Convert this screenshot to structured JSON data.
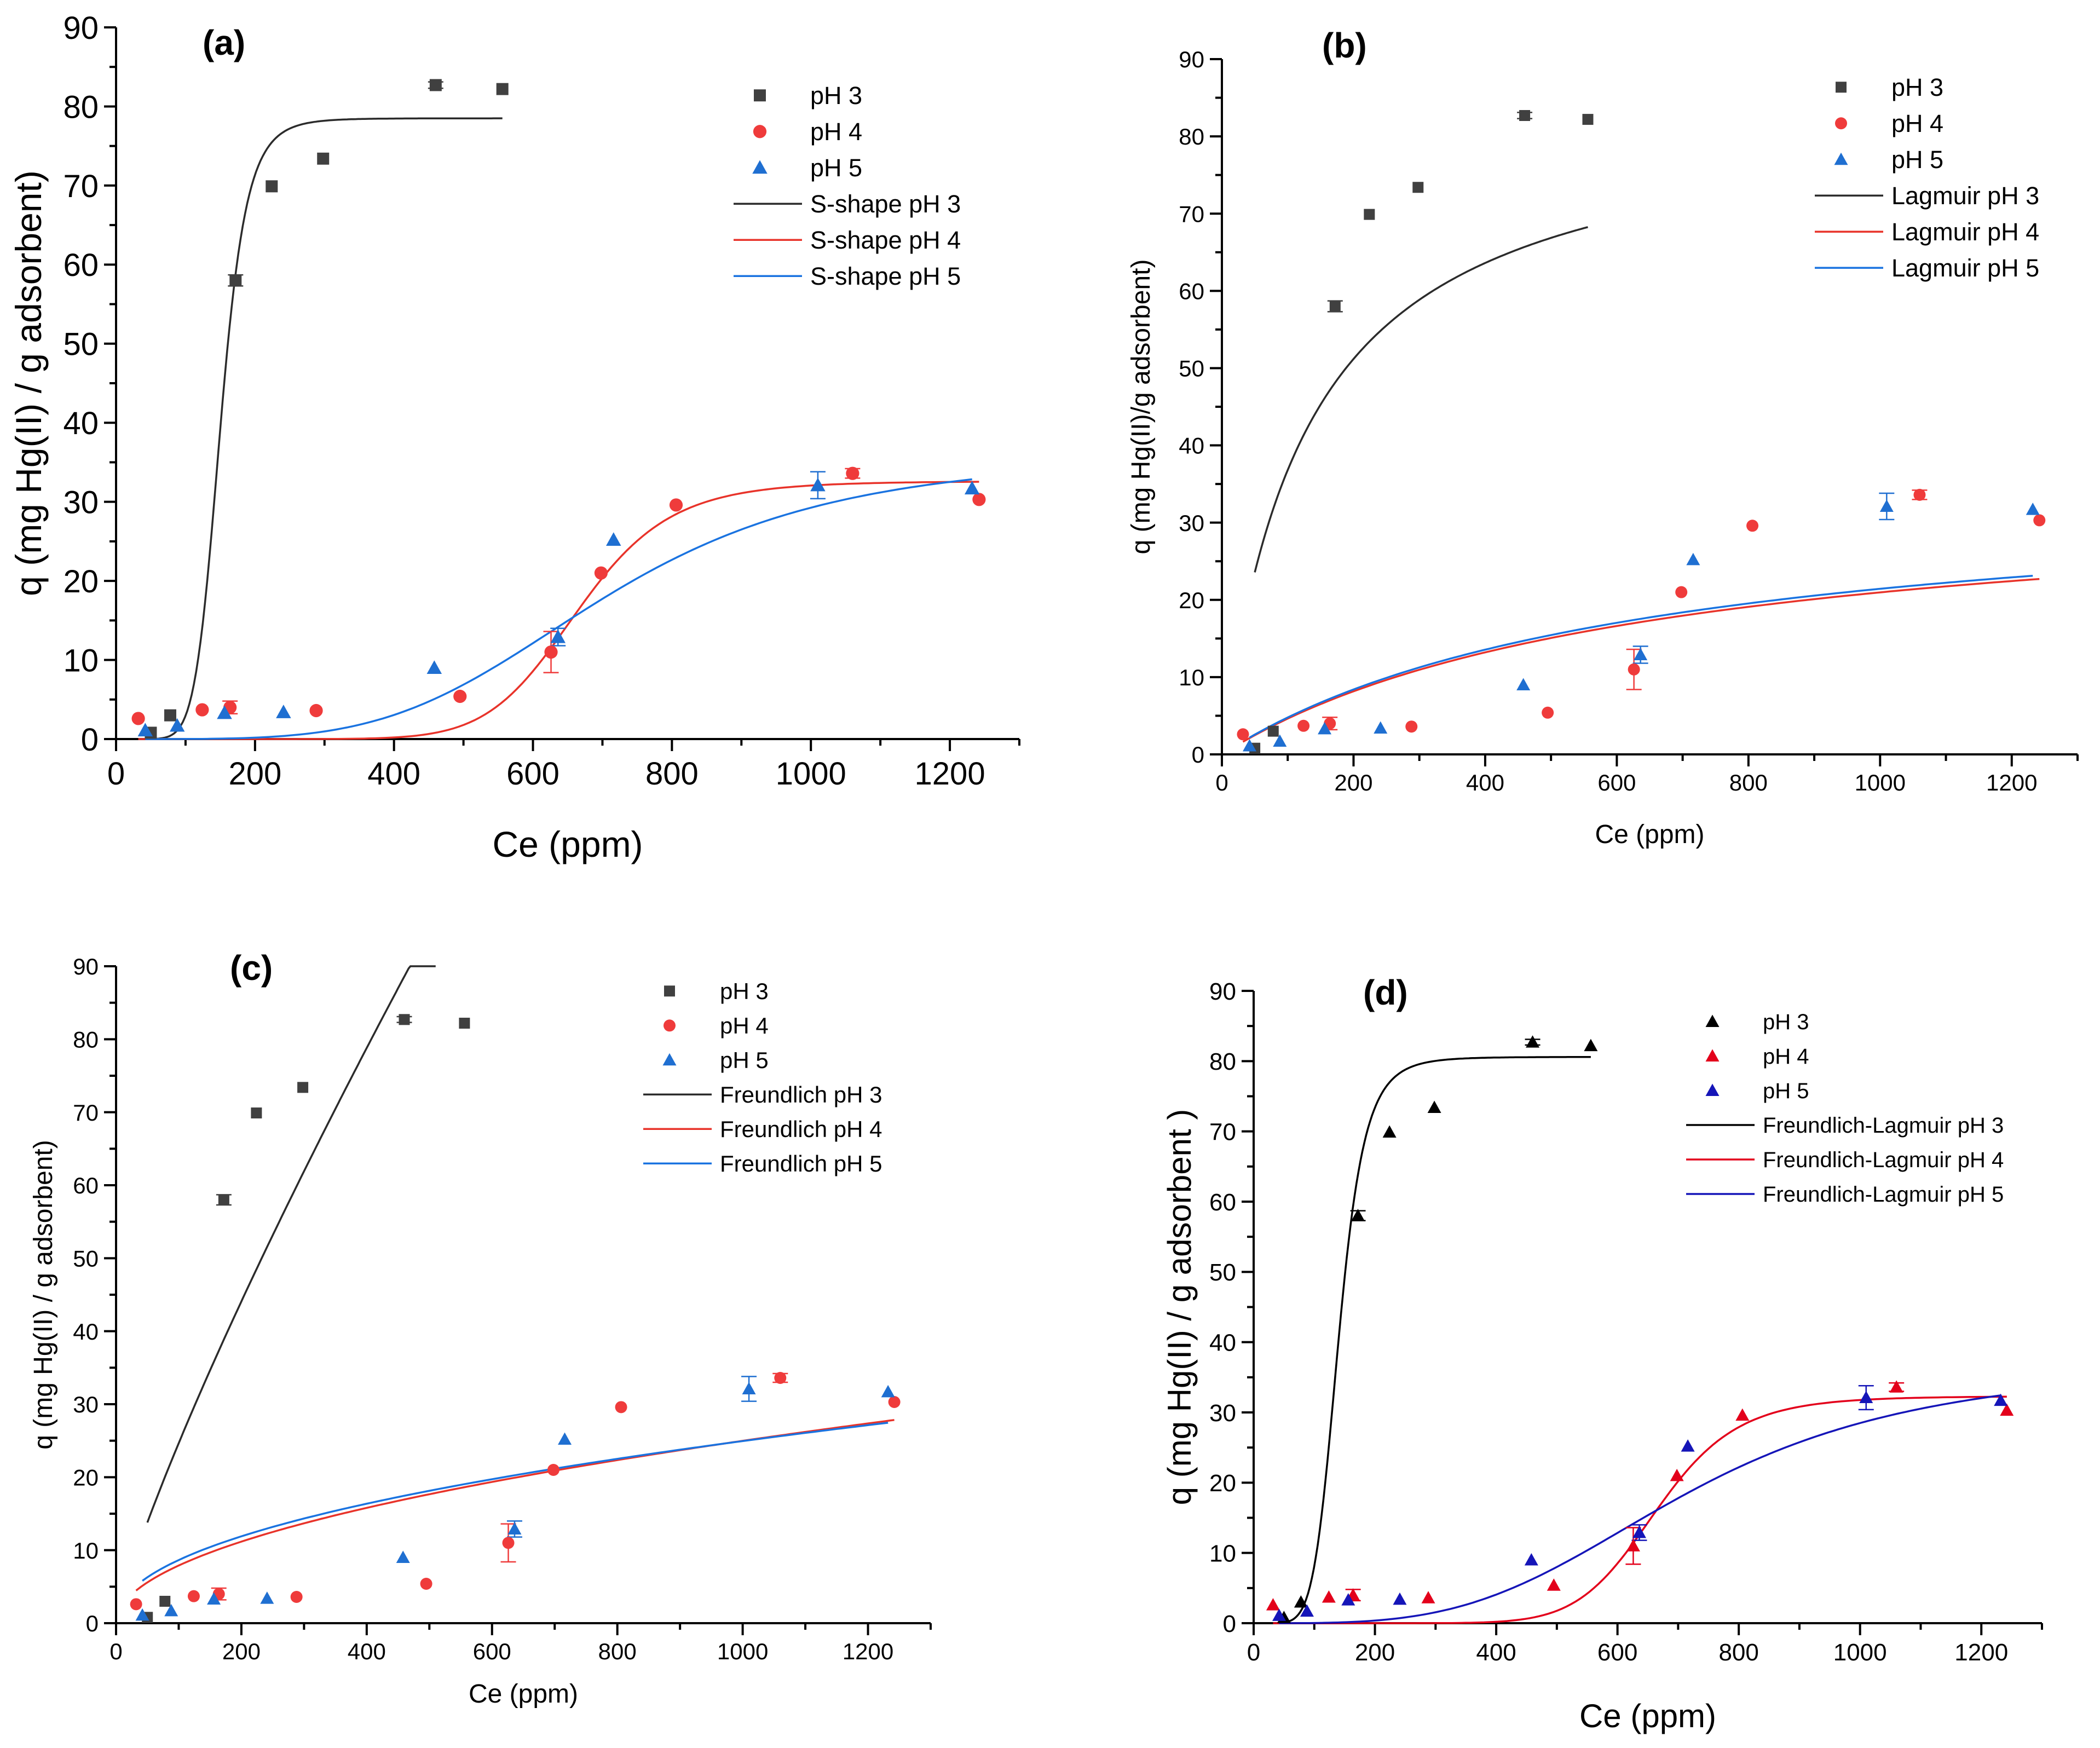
{
  "chart_data": [
    {
      "type": "scatter",
      "panel_label": "(a)",
      "xlabel": "Ce (ppm)",
      "ylabel": "q (mg Hg(II) / g adsorbent)",
      "xlim": [
        0,
        1300
      ],
      "ylim": [
        0,
        90
      ],
      "xticks": [
        "0",
        "200",
        "400",
        "600",
        "800",
        "1000",
        "1200"
      ],
      "yticks": [
        "0",
        "10",
        "20",
        "30",
        "40",
        "50",
        "60",
        "70",
        "80",
        "90"
      ],
      "marker_style": "mixed",
      "legend_position": "top-right",
      "legend": [
        "pH 3",
        "pH 4",
        "pH 5",
        "S-shape pH 3",
        "S-shape pH 4",
        "S-shape pH 5"
      ],
      "scatter_series": [
        {
          "name": "pH 3",
          "color": "#404040",
          "marker": "square",
          "x": [
            50,
            78,
            172,
            224,
            298,
            460,
            556
          ],
          "y": [
            0.8,
            3.0,
            58.0,
            69.9,
            73.4,
            82.7,
            82.2
          ]
        },
        {
          "name": "pH 4",
          "color": "#ef3b3b",
          "marker": "circle",
          "x": [
            32,
            124,
            164,
            288,
            495,
            626,
            698,
            806,
            1060,
            1242
          ],
          "y": [
            2.6,
            3.7,
            4.0,
            3.6,
            5.4,
            11.0,
            21.0,
            29.6,
            33.6,
            30.3
          ]
        },
        {
          "name": "pH 5",
          "color": "#1f6fd1",
          "marker": "triangle",
          "x": [
            42,
            88,
            156,
            241,
            458,
            636,
            716,
            1010,
            1232
          ],
          "y": [
            1.1,
            1.7,
            3.3,
            3.4,
            9.0,
            12.9,
            25.2,
            32.1,
            31.7
          ]
        }
      ],
      "line_series": [
        {
          "name": "S-shape pH 3",
          "color": "#2b2b2b",
          "model": "sigmoid",
          "x_start": 45,
          "x_end": 556,
          "qmax": 78.5,
          "k": 150,
          "n": 8
        },
        {
          "name": "S-shape pH 4",
          "color": "#e8332a",
          "model": "sigmoid",
          "x_start": 32,
          "x_end": 1242,
          "qmax": 32.6,
          "k": 665,
          "n": 10
        },
        {
          "name": "S-shape pH 5",
          "color": "#1a73e0",
          "model": "sigmoid",
          "x_start": 42,
          "x_end": 1232,
          "qmax": 36.0,
          "k": 705,
          "n": 4.2
        }
      ],
      "error_bars": [
        {
          "x": 626,
          "y": 11.0,
          "err": 2.6,
          "color": "#ef3b3b"
        },
        {
          "x": 636,
          "y": 12.9,
          "err": 1.1,
          "color": "#1f6fd1"
        },
        {
          "x": 1010,
          "y": 32.1,
          "err": 1.7,
          "color": "#1f6fd1"
        },
        {
          "x": 1060,
          "y": 33.6,
          "err": 0.6,
          "color": "#ef3b3b"
        },
        {
          "x": 172,
          "y": 58.0,
          "err": 0.7,
          "color": "#404040"
        },
        {
          "x": 460,
          "y": 82.7,
          "err": 0.4,
          "color": "#404040"
        },
        {
          "x": 164,
          "y": 4.0,
          "err": 0.8,
          "color": "#ef3b3b"
        }
      ]
    },
    {
      "type": "scatter",
      "panel_label": "(b)",
      "xlabel": "Ce (ppm)",
      "ylabel": "q (mg Hg(II)/g adsorbent)",
      "xlim": [
        0,
        1300
      ],
      "ylim": [
        0,
        90
      ],
      "xticks": [
        "0",
        "200",
        "400",
        "600",
        "800",
        "1000",
        "1200"
      ],
      "yticks": [
        "0",
        "10",
        "20",
        "30",
        "40",
        "50",
        "60",
        "70",
        "80",
        "90"
      ],
      "marker_style": "mixed",
      "legend_position": "top-right",
      "legend": [
        "pH 3",
        "pH 4",
        "pH 5",
        "Lagmuir pH 3",
        "Lagmuir pH 4",
        "Lagmuir pH 5"
      ],
      "scatter_series": [
        {
          "name": "pH 3",
          "color": "#404040",
          "marker": "square",
          "x": [
            50,
            78,
            172,
            224,
            298,
            460,
            556
          ],
          "y": [
            0.8,
            3.0,
            58.0,
            69.9,
            73.4,
            82.7,
            82.2
          ]
        },
        {
          "name": "pH 4",
          "color": "#ef3b3b",
          "marker": "circle",
          "x": [
            32,
            124,
            164,
            288,
            495,
            626,
            698,
            806,
            1060,
            1242
          ],
          "y": [
            2.6,
            3.7,
            4.0,
            3.6,
            5.4,
            11.0,
            21.0,
            29.6,
            33.6,
            30.3
          ]
        },
        {
          "name": "pH 5",
          "color": "#1f6fd1",
          "marker": "triangle",
          "x": [
            42,
            88,
            156,
            241,
            458,
            636,
            716,
            1010,
            1232
          ],
          "y": [
            1.1,
            1.7,
            3.3,
            3.4,
            9.0,
            12.9,
            25.2,
            32.1,
            31.7
          ]
        }
      ],
      "line_series": [
        {
          "name": "Lagmuir pH 3",
          "color": "#2b2b2b",
          "model": "langmuir",
          "x_start": 50,
          "x_end": 556,
          "qmax": 84.0,
          "k": 0.0078
        },
        {
          "name": "Lagmuir pH 4",
          "color": "#e8332a",
          "model": "langmuir",
          "x_start": 32,
          "x_end": 1242,
          "qmax": 34.5,
          "k": 0.00155
        },
        {
          "name": "Lagmuir pH 5",
          "color": "#1a73e0",
          "model": "langmuir",
          "x_start": 42,
          "x_end": 1232,
          "qmax": 35.0,
          "k": 0.00158
        }
      ],
      "error_bars": [
        {
          "x": 626,
          "y": 11.0,
          "err": 2.6,
          "color": "#ef3b3b"
        },
        {
          "x": 636,
          "y": 12.9,
          "err": 1.1,
          "color": "#1f6fd1"
        },
        {
          "x": 1010,
          "y": 32.1,
          "err": 1.7,
          "color": "#1f6fd1"
        },
        {
          "x": 1060,
          "y": 33.6,
          "err": 0.6,
          "color": "#ef3b3b"
        },
        {
          "x": 172,
          "y": 58.0,
          "err": 0.7,
          "color": "#404040"
        },
        {
          "x": 460,
          "y": 82.7,
          "err": 0.4,
          "color": "#404040"
        },
        {
          "x": 164,
          "y": 4.0,
          "err": 0.8,
          "color": "#ef3b3b"
        }
      ]
    },
    {
      "type": "scatter",
      "panel_label": "(c)",
      "xlabel": "Ce (ppm)",
      "ylabel": "q (mg Hg(II) / g adsorbent)",
      "xlim": [
        0,
        1300
      ],
      "ylim": [
        0,
        90
      ],
      "xticks": [
        "0",
        "200",
        "400",
        "600",
        "800",
        "1000",
        "1200"
      ],
      "yticks": [
        "0",
        "10",
        "20",
        "30",
        "40",
        "50",
        "60",
        "70",
        "80",
        "90"
      ],
      "marker_style": "mixed",
      "legend_position": "top-right",
      "legend": [
        "pH 3",
        "pH 4",
        "pH 5",
        "Freundlich pH 3",
        "Freundlich pH 4",
        "Freundlich pH 5"
      ],
      "scatter_series": [
        {
          "name": "pH 3",
          "color": "#404040",
          "marker": "square",
          "x": [
            50,
            78,
            172,
            224,
            298,
            460,
            556
          ],
          "y": [
            0.8,
            3.0,
            58.0,
            69.9,
            73.4,
            82.7,
            82.2
          ]
        },
        {
          "name": "pH 4",
          "color": "#ef3b3b",
          "marker": "circle",
          "x": [
            32,
            124,
            164,
            288,
            495,
            626,
            698,
            806,
            1060,
            1242
          ],
          "y": [
            2.6,
            3.7,
            4.0,
            3.6,
            5.4,
            11.0,
            21.0,
            29.6,
            33.6,
            30.3
          ]
        },
        {
          "name": "pH 5",
          "color": "#1f6fd1",
          "marker": "triangle",
          "x": [
            42,
            88,
            156,
            241,
            458,
            636,
            716,
            1010,
            1232
          ],
          "y": [
            1.1,
            1.7,
            3.3,
            3.4,
            9.0,
            12.9,
            25.2,
            32.1,
            31.7
          ]
        }
      ],
      "line_series": [
        {
          "name": "Freundlich pH 3",
          "color": "#2b2b2b",
          "model": "freundlich",
          "x_start": 50,
          "x_end": 510,
          "kf": 0.52,
          "n": 0.838
        },
        {
          "name": "Freundlich pH 4",
          "color": "#e8332a",
          "model": "freundlich",
          "x_start": 32,
          "x_end": 1242,
          "kf": 0.79,
          "n": 0.5
        },
        {
          "name": "Freundlich pH 5",
          "color": "#1a73e0",
          "model": "freundlich",
          "x_start": 42,
          "x_end": 1232,
          "kf": 1.04,
          "n": 0.46
        }
      ],
      "error_bars": [
        {
          "x": 626,
          "y": 11.0,
          "err": 2.6,
          "color": "#ef3b3b"
        },
        {
          "x": 636,
          "y": 12.9,
          "err": 1.1,
          "color": "#1f6fd1"
        },
        {
          "x": 1010,
          "y": 32.1,
          "err": 1.7,
          "color": "#1f6fd1"
        },
        {
          "x": 1060,
          "y": 33.6,
          "err": 0.6,
          "color": "#ef3b3b"
        },
        {
          "x": 172,
          "y": 58.0,
          "err": 0.7,
          "color": "#404040"
        },
        {
          "x": 460,
          "y": 82.7,
          "err": 0.4,
          "color": "#404040"
        },
        {
          "x": 164,
          "y": 4.0,
          "err": 0.8,
          "color": "#ef3b3b"
        }
      ]
    },
    {
      "type": "scatter",
      "panel_label": "(d)",
      "xlabel": "Ce (ppm)",
      "ylabel": "q (mg Hg(II) / g adsorbent )",
      "xlim": [
        0,
        1300
      ],
      "ylim": [
        0,
        90
      ],
      "xticks": [
        "0",
        "200",
        "400",
        "600",
        "800",
        "1000",
        "1200"
      ],
      "yticks": [
        "0",
        "10",
        "20",
        "30",
        "40",
        "50",
        "60",
        "70",
        "80",
        "90"
      ],
      "marker_style": "triangles",
      "legend_position": "top-right",
      "legend": [
        "pH 3",
        "pH 4",
        "pH 5",
        "Freundlich-Lagmuir pH 3",
        "Freundlich-Lagmuir pH 4",
        "Freundlich-Lagmuir pH 5"
      ],
      "scatter_series": [
        {
          "name": "pH 3",
          "color": "#000000",
          "marker": "triangle",
          "x": [
            50,
            78,
            172,
            224,
            298,
            460,
            556
          ],
          "y": [
            0.8,
            3.0,
            58.0,
            69.9,
            73.4,
            82.7,
            82.2
          ]
        },
        {
          "name": "pH 4",
          "color": "#e3001b",
          "marker": "triangle",
          "x": [
            32,
            124,
            164,
            288,
            495,
            626,
            698,
            806,
            1060,
            1242
          ],
          "y": [
            2.6,
            3.7,
            4.0,
            3.6,
            5.4,
            11.0,
            21.0,
            29.6,
            33.6,
            30.3
          ]
        },
        {
          "name": "pH 5",
          "color": "#1515b8",
          "marker": "triangle",
          "x": [
            42,
            88,
            156,
            241,
            458,
            636,
            716,
            1010,
            1232
          ],
          "y": [
            1.1,
            1.7,
            3.3,
            3.4,
            9.0,
            12.9,
            25.2,
            32.1,
            31.7
          ]
        }
      ],
      "line_series": [
        {
          "name": "Freundlich-Lagmuir pH 3",
          "color": "#000000",
          "model": "sigmoid",
          "x_start": 45,
          "x_end": 556,
          "qmax": 80.6,
          "k": 140,
          "n": 6.5
        },
        {
          "name": "Freundlich-Lagmuir pH 4",
          "color": "#e3001b",
          "model": "sigmoid",
          "x_start": 32,
          "x_end": 1242,
          "qmax": 32.3,
          "k": 665,
          "n": 10
        },
        {
          "name": "Freundlich-Lagmuir pH 5",
          "color": "#1515b8",
          "model": "sigmoid",
          "x_start": 42,
          "x_end": 1232,
          "qmax": 37.0,
          "k": 715,
          "n": 3.6
        }
      ],
      "error_bars": [
        {
          "x": 626,
          "y": 11.0,
          "err": 2.6,
          "color": "#e3001b"
        },
        {
          "x": 636,
          "y": 12.9,
          "err": 1.1,
          "color": "#1515b8"
        },
        {
          "x": 1010,
          "y": 32.1,
          "err": 1.7,
          "color": "#1515b8"
        },
        {
          "x": 1060,
          "y": 33.6,
          "err": 0.6,
          "color": "#e3001b"
        },
        {
          "x": 172,
          "y": 58.0,
          "err": 0.7,
          "color": "#000000"
        },
        {
          "x": 460,
          "y": 82.7,
          "err": 0.4,
          "color": "#000000"
        },
        {
          "x": 164,
          "y": 4.0,
          "err": 0.8,
          "color": "#e3001b"
        }
      ]
    }
  ]
}
